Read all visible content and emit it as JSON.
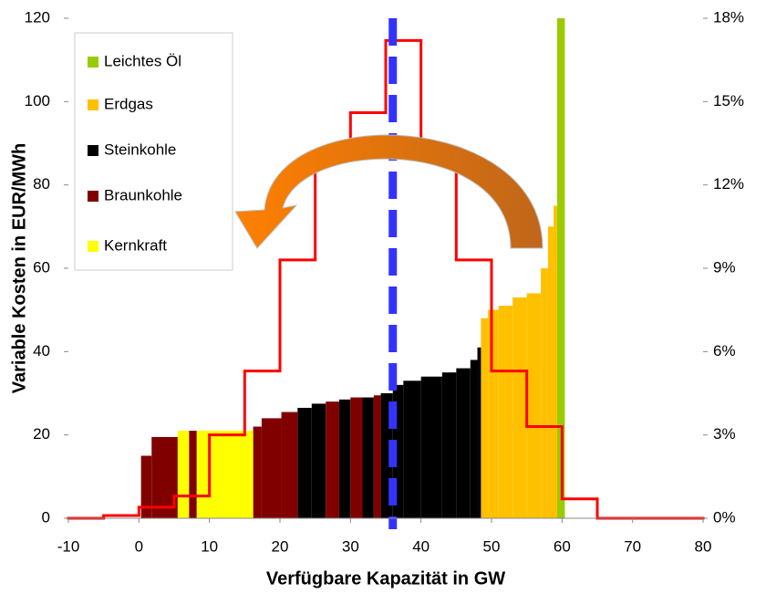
{
  "chart_data": {
    "type": "merit-order",
    "xlabel": "Verfügbare Kapazität in GW",
    "ylabel": "Variable Kosten in EUR/MWh",
    "xlim": [
      -10,
      80
    ],
    "xticks": [
      -10,
      0,
      10,
      20,
      30,
      40,
      50,
      60,
      70,
      80
    ],
    "ylim": [
      0,
      120
    ],
    "yticks": [
      0,
      20,
      40,
      60,
      80,
      100,
      120
    ],
    "y2lim": [
      0,
      18
    ],
    "y2ticks": [
      {
        "value": 0,
        "label": "0%"
      },
      {
        "value": 3,
        "label": "3%"
      },
      {
        "value": 6,
        "label": "6%"
      },
      {
        "value": 9,
        "label": "9%"
      },
      {
        "value": 12,
        "label": "12%"
      },
      {
        "value": 15,
        "label": "15%"
      },
      {
        "value": 18,
        "label": "18%"
      }
    ],
    "series": [
      {
        "name": "Leichtes Öl",
        "color": "#99cc00",
        "x_start": [
          59.3
        ],
        "x_end": [
          60.4
        ],
        "values": [
          120
        ]
      },
      {
        "name": "Erdgas",
        "color": "#ffc000",
        "x_start": [
          48.5,
          49.5,
          51,
          53,
          55,
          57,
          58,
          58.8
        ],
        "x_end": [
          49.5,
          51,
          53,
          55,
          57,
          58,
          58.8,
          59.3
        ],
        "values": [
          48,
          50,
          51,
          53,
          54,
          60,
          70,
          75
        ]
      },
      {
        "name": "Steinkohle",
        "color": "#000000",
        "x_start": [
          22.5,
          24.5,
          28.4,
          31.7,
          34.3,
          36,
          37.5,
          40,
          43,
          45,
          47,
          48
        ],
        "x_end": [
          24.5,
          26.5,
          30,
          33.3,
          36,
          37.5,
          40,
          43,
          45,
          47,
          48,
          48.5
        ],
        "values": [
          26.5,
          27.5,
          28.5,
          29,
          30,
          32,
          33,
          34,
          35,
          36,
          38,
          41
        ]
      },
      {
        "name": "Braunkohle",
        "color": "#800000",
        "x_start": [
          0.3,
          1.8,
          7.1,
          16.2,
          17.4,
          20.2,
          26.5,
          30,
          33.3
        ],
        "x_end": [
          1.8,
          5.5,
          8.2,
          17.4,
          20.2,
          22.5,
          28.4,
          31.7,
          34.3
        ],
        "values": [
          15,
          19.5,
          21,
          22,
          24,
          25.5,
          28,
          29,
          29.5
        ]
      },
      {
        "name": "Kernkraft",
        "color": "#ffff00",
        "x_start": [
          5.5,
          8.2
        ],
        "x_end": [
          7.1,
          16.2
        ],
        "values": [
          21,
          21
        ]
      }
    ],
    "distribution": {
      "axis": "y2",
      "color": "#ff0000",
      "bins": [
        -10,
        -5,
        0,
        5,
        10,
        15,
        20,
        25,
        30,
        35,
        40,
        45,
        50,
        55,
        60,
        65,
        80
      ],
      "values": [
        0,
        0.1,
        0.4,
        0.8,
        3,
        5.3,
        9.3,
        13.1,
        14.6,
        17.2,
        13.1,
        9.3,
        5.3,
        3.3,
        0.7,
        0
      ]
    },
    "vline": {
      "x": 36,
      "color": "#3333ff"
    }
  }
}
